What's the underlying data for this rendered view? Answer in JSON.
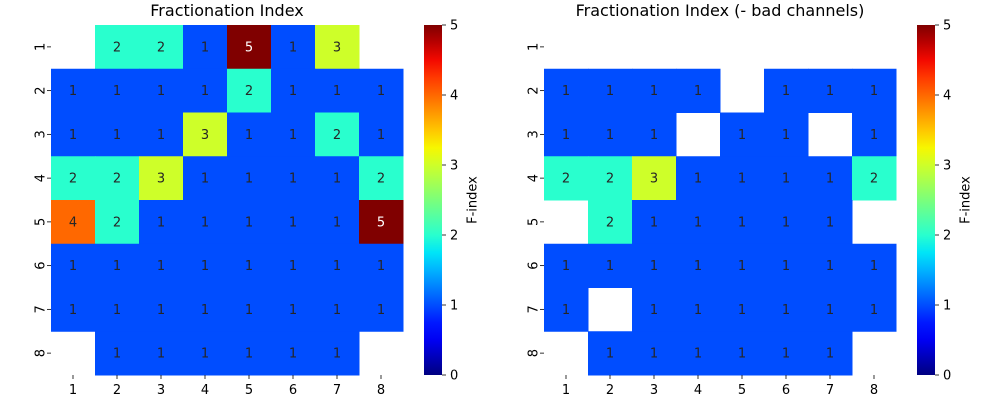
{
  "chart_data": [
    {
      "type": "heatmap",
      "title": "Fractionation Index",
      "x_ticks": [
        "1",
        "2",
        "3",
        "4",
        "5",
        "6",
        "7",
        "8"
      ],
      "y_ticks": [
        "1",
        "2",
        "3",
        "4",
        "5",
        "6",
        "7",
        "8"
      ],
      "matrix": [
        [
          null,
          2,
          2,
          1,
          5,
          1,
          3,
          null
        ],
        [
          1,
          1,
          1,
          1,
          2,
          1,
          1,
          1
        ],
        [
          1,
          1,
          1,
          3,
          1,
          1,
          2,
          1
        ],
        [
          2,
          2,
          3,
          1,
          1,
          1,
          1,
          2
        ],
        [
          4,
          2,
          1,
          1,
          1,
          1,
          1,
          5
        ],
        [
          1,
          1,
          1,
          1,
          1,
          1,
          1,
          1
        ],
        [
          1,
          1,
          1,
          1,
          1,
          1,
          1,
          1
        ],
        [
          null,
          1,
          1,
          1,
          1,
          1,
          1,
          null
        ]
      ],
      "colorbar": {
        "label": "F-index",
        "min": 0,
        "max": 5,
        "ticks": [
          "0",
          "1",
          "2",
          "3",
          "4",
          "5"
        ],
        "colormap": "jet"
      },
      "annotations": true
    },
    {
      "type": "heatmap",
      "title": "Fractionation Index (- bad channels)",
      "x_ticks": [
        "1",
        "2",
        "3",
        "4",
        "5",
        "6",
        "7",
        "8"
      ],
      "y_ticks": [
        "1",
        "2",
        "3",
        "4",
        "5",
        "6",
        "7",
        "8"
      ],
      "matrix": [
        [
          null,
          null,
          null,
          null,
          null,
          null,
          null,
          null
        ],
        [
          1,
          1,
          1,
          1,
          null,
          1,
          1,
          1
        ],
        [
          1,
          1,
          1,
          null,
          1,
          1,
          null,
          1
        ],
        [
          2,
          2,
          3,
          1,
          1,
          1,
          1,
          2
        ],
        [
          null,
          2,
          1,
          1,
          1,
          1,
          1,
          null
        ],
        [
          1,
          1,
          1,
          1,
          1,
          1,
          1,
          1
        ],
        [
          1,
          null,
          1,
          1,
          1,
          1,
          1,
          1
        ],
        [
          null,
          1,
          1,
          1,
          1,
          1,
          1,
          null
        ]
      ],
      "colorbar": {
        "label": "F-index",
        "min": 0,
        "max": 5,
        "ticks": [
          "0",
          "1",
          "2",
          "3",
          "4",
          "5"
        ],
        "colormap": "jet"
      },
      "annotations": true
    }
  ]
}
